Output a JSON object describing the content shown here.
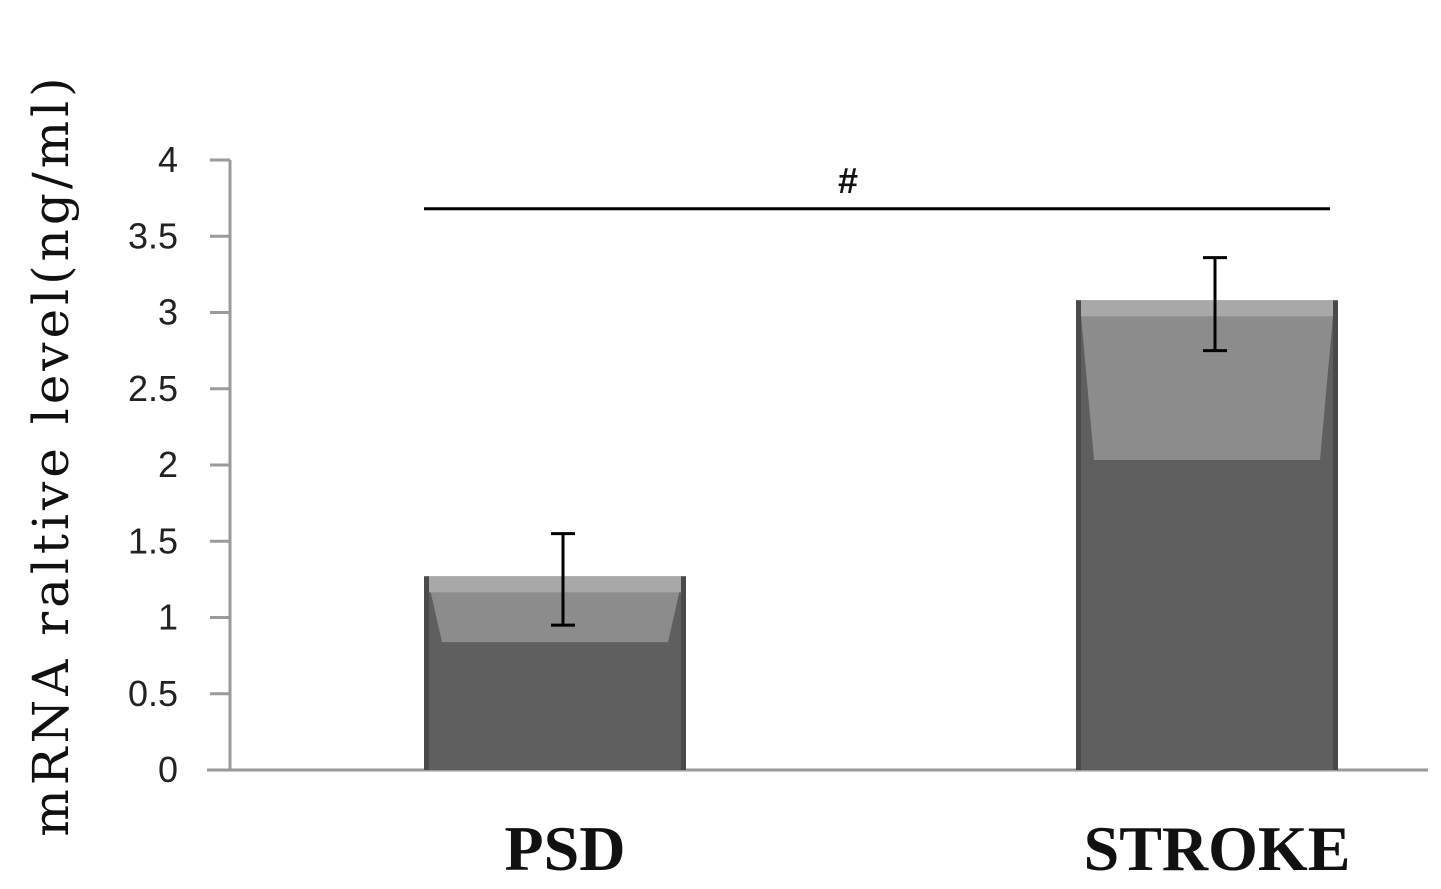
{
  "chart_data": {
    "type": "bar",
    "categories": [
      "PSD",
      "STROKE"
    ],
    "values": [
      1.27,
      3.08
    ],
    "error_low": [
      0.95,
      2.75
    ],
    "error_high": [
      1.55,
      3.36
    ],
    "ylabel": "mRNA raltive level(ng/ml)",
    "xlabel": "",
    "ylim": [
      0,
      4
    ],
    "yticks": [
      0,
      0.5,
      1,
      1.5,
      2,
      2.5,
      3,
      3.5,
      4
    ],
    "ytick_labels": [
      "0",
      "0.5",
      "1",
      "1.5",
      "2",
      "2.5",
      "3",
      "3.5",
      "4"
    ],
    "significance": {
      "label": "#",
      "between": [
        "PSD",
        "STROKE"
      ],
      "level": 3.68
    },
    "bar_color": "#5f5f5f",
    "bar_highlight_color": "#8c8c8c",
    "axis_color": "#9a9a9a",
    "grid": false,
    "legend": "none"
  }
}
